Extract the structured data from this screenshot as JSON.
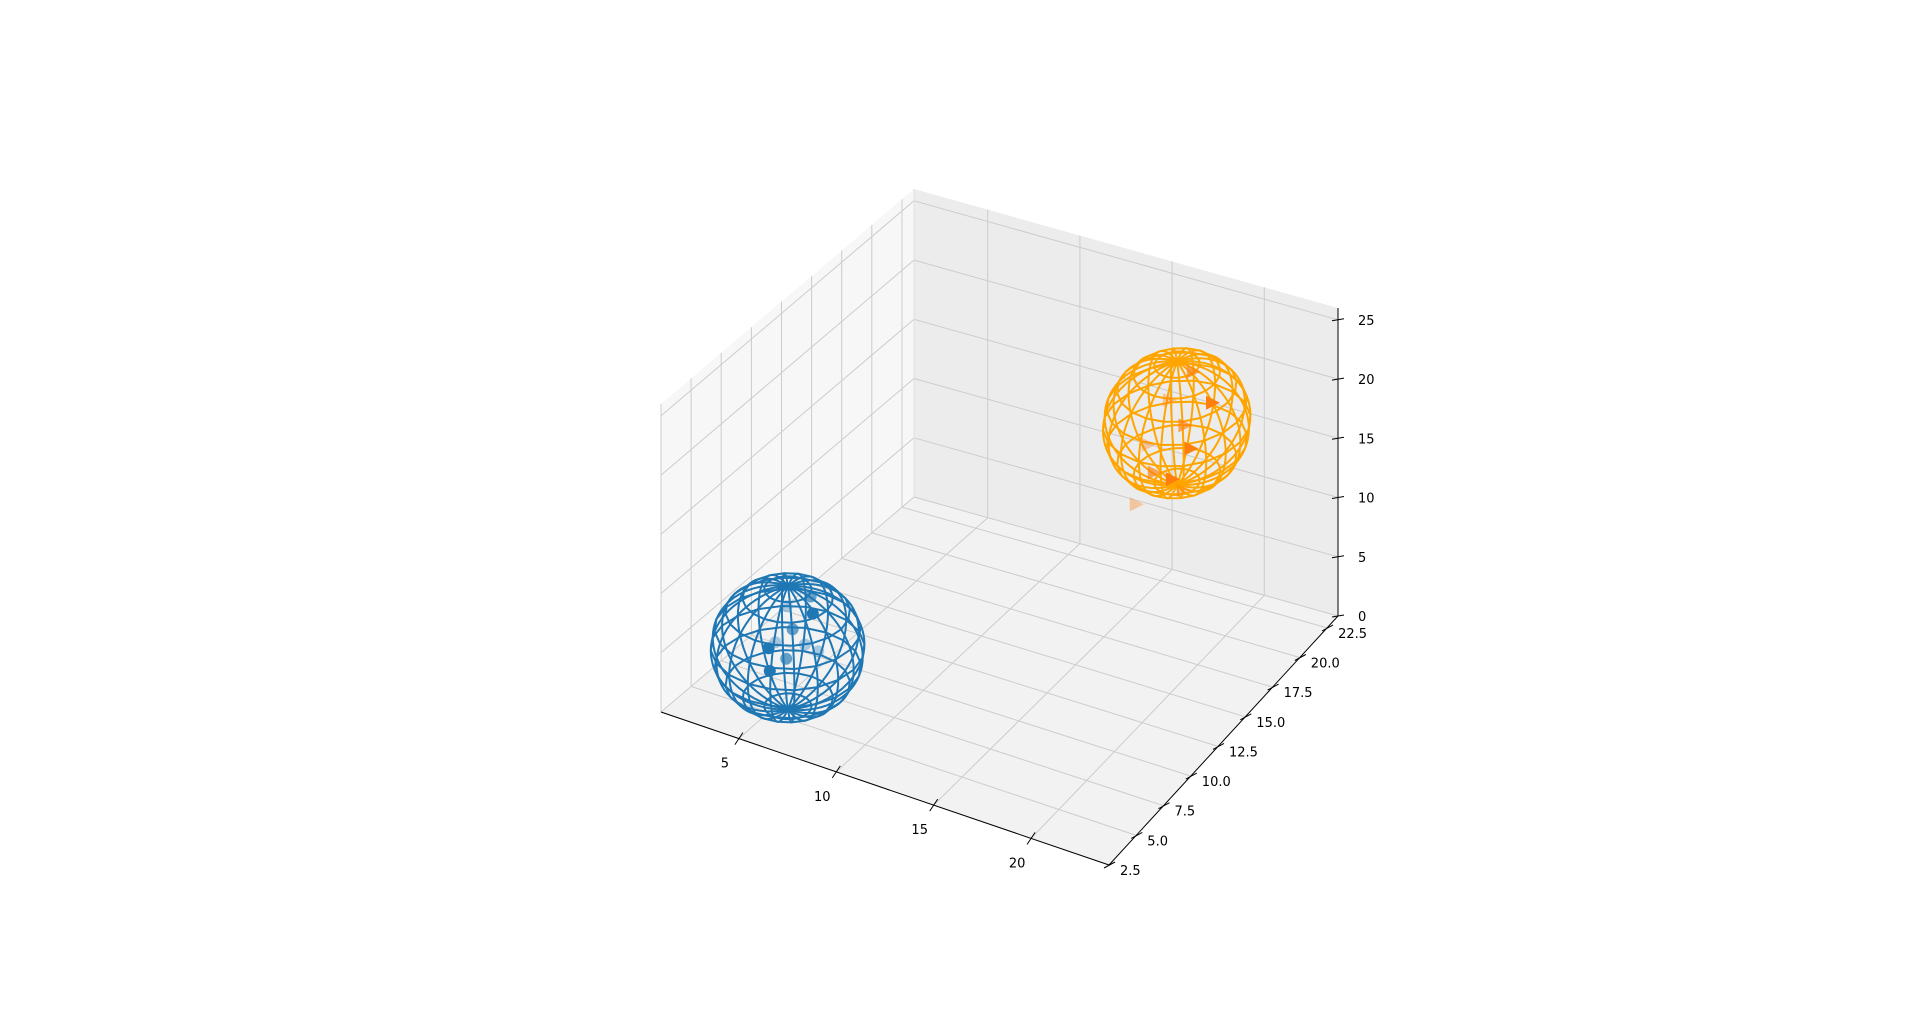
{
  "chart_data": {
    "type": "scatter",
    "projection": "3d",
    "title": "",
    "xlabel": "",
    "ylabel": "",
    "zlabel": "",
    "grid": true,
    "xlim": [
      1,
      24
    ],
    "ylim": [
      2.5,
      23.5
    ],
    "zlim": [
      0,
      26
    ],
    "x_ticks": [
      5,
      10,
      15,
      20
    ],
    "y_ticks": [
      "2.5",
      "5.0",
      "7.5",
      "10.0",
      "12.5",
      "15.0",
      "17.5",
      "20.0",
      "22.5"
    ],
    "z_ticks": [
      0,
      5,
      10,
      15,
      20,
      25
    ],
    "pane_color": "#f2f2f2",
    "grid_color": "#cccccc",
    "series": [
      {
        "marker": "o",
        "color": "#1f77b4",
        "wireframe": {
          "center": [
            6,
            5,
            6
          ],
          "radius": [
            3.4,
            3.4,
            5.2
          ]
        },
        "points": [
          [
            5.2,
            6.2,
            8.0
          ],
          [
            6.0,
            5.4,
            7.2
          ],
          [
            6.8,
            5.8,
            8.6
          ],
          [
            5.6,
            4.6,
            6.6
          ],
          [
            6.4,
            4.2,
            6.0
          ],
          [
            5.0,
            5.0,
            5.4
          ],
          [
            7.0,
            4.8,
            7.0
          ],
          [
            6.2,
            6.6,
            9.0
          ],
          [
            5.8,
            3.8,
            5.0
          ],
          [
            7.2,
            5.6,
            5.8
          ]
        ]
      },
      {
        "marker": ">",
        "color": "#ffa500",
        "wireframe": {
          "center": [
            18,
            19,
            18
          ],
          "radius": [
            3.4,
            3.4,
            5.2
          ]
        },
        "points": [
          [
            17.2,
            19.6,
            19.0
          ],
          [
            18.4,
            19.0,
            18.0
          ],
          [
            19.2,
            18.2,
            17.2
          ],
          [
            16.8,
            18.4,
            16.2
          ],
          [
            17.6,
            17.6,
            15.0
          ],
          [
            18.8,
            17.2,
            15.4
          ],
          [
            19.6,
            16.8,
            15.2
          ],
          [
            18.0,
            20.4,
            21.0
          ],
          [
            19.4,
            19.8,
            19.6
          ],
          [
            17.0,
            17.0,
            12.6
          ]
        ]
      }
    ]
  }
}
